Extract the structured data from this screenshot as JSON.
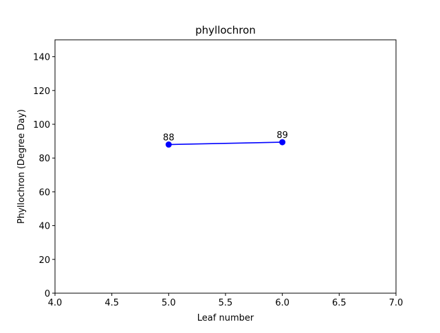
{
  "chart_data": {
    "type": "line",
    "title": "phyllochron",
    "xlabel": "Leaf number",
    "ylabel": "Phyllochron (Degree Day)",
    "xlim": [
      4.0,
      7.0
    ],
    "ylim": [
      0,
      150
    ],
    "xticks": [
      "4.0",
      "4.5",
      "5.0",
      "5.5",
      "6.0",
      "6.5",
      "7.0"
    ],
    "yticks": [
      "0",
      "20",
      "40",
      "60",
      "80",
      "100",
      "120",
      "140"
    ],
    "grid": false,
    "series": [
      {
        "x": [
          5,
          6
        ],
        "y": [
          88,
          89.4
        ],
        "labels": [
          "88",
          "89"
        ],
        "color": "#0000ff",
        "marker": "circle"
      }
    ]
  }
}
